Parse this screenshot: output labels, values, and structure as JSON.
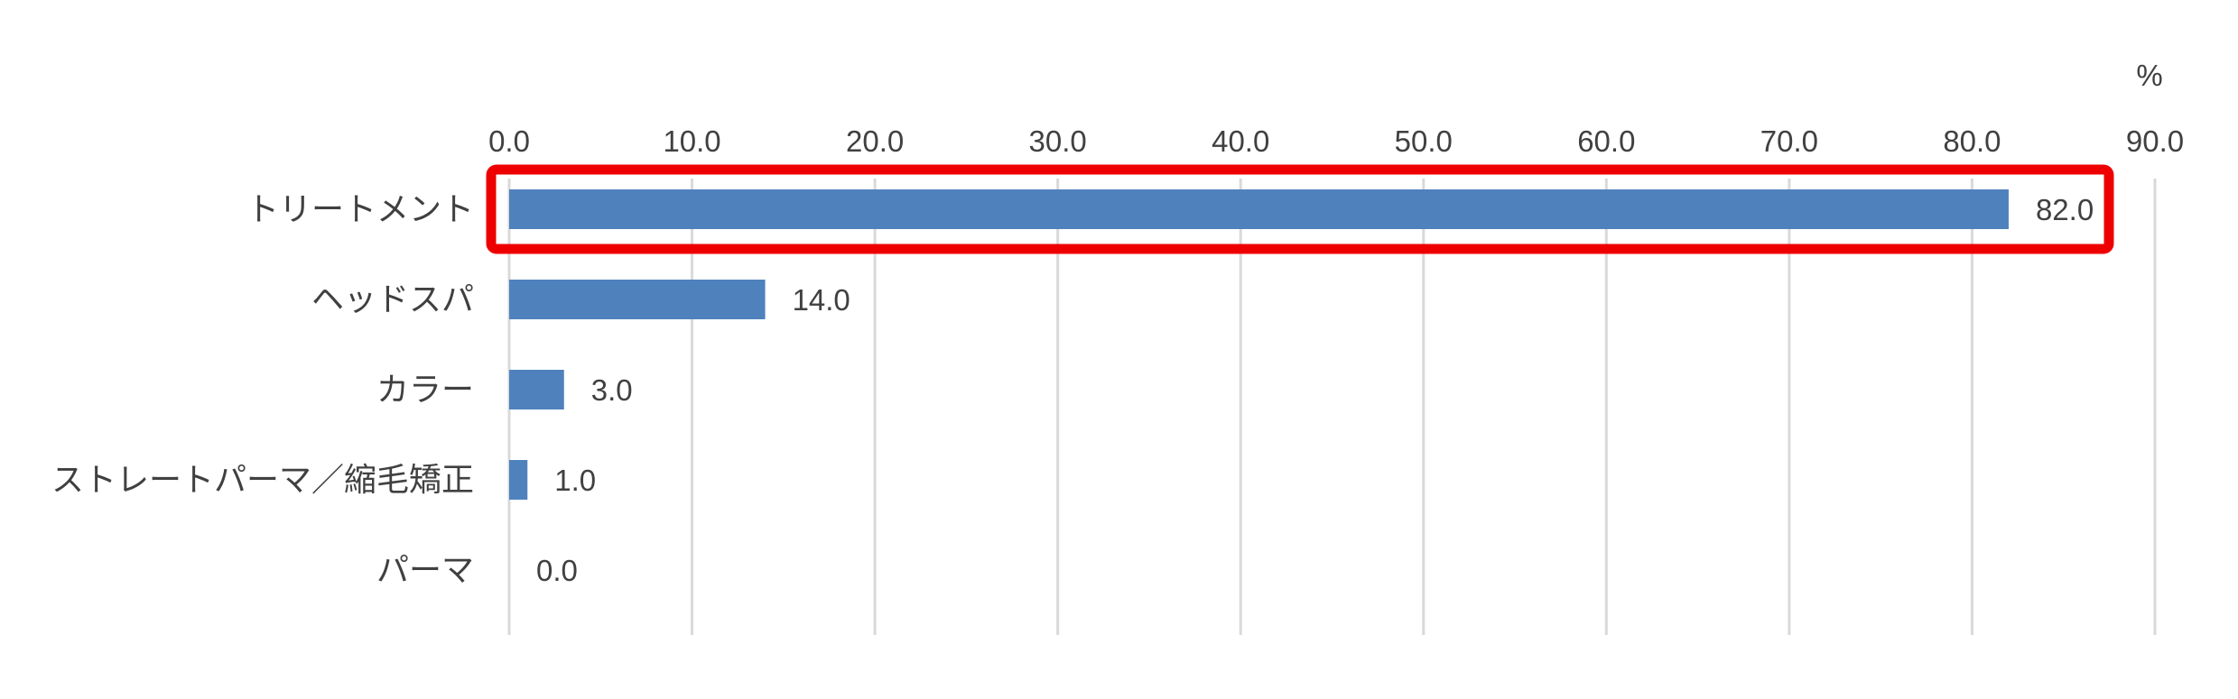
{
  "chart_data": {
    "type": "bar",
    "orientation": "horizontal",
    "unit": "%",
    "categories": [
      "トリートメント",
      "ヘッドスパ",
      "カラー",
      "ストレートパーマ／縮毛矯正",
      "パーマ"
    ],
    "values": [
      82.0,
      14.0,
      3.0,
      1.0,
      0.0
    ],
    "value_labels": [
      "82.0",
      "14.0",
      "3.0",
      "1.0",
      "0.0"
    ],
    "xlim": [
      0,
      90
    ],
    "xticks": [
      "0.0",
      "10.0",
      "20.0",
      "30.0",
      "40.0",
      "50.0",
      "60.0",
      "70.0",
      "80.0",
      "90.0"
    ],
    "axis_position": "top",
    "grid": true,
    "highlighted_category": "トリートメント",
    "colors": {
      "bar": "#4f81bd",
      "highlight": "#ee0000",
      "grid": "#d9d9d9",
      "text": "#404040"
    }
  }
}
